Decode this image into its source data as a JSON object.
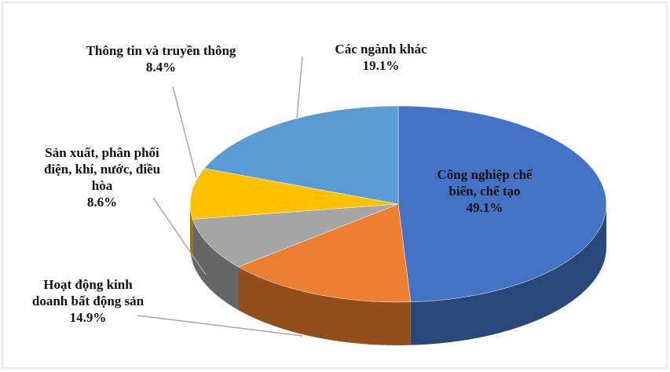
{
  "chart_data": {
    "type": "pie",
    "categories": [
      "Công nghiệp chế biến, chế tạo",
      "Hoạt động kinh doanh bất động sản",
      "Sản xuất, phân phối điện, khí, nước, điều hòa",
      "Thông tin và truyền thông",
      "Các ngành khác"
    ],
    "values": [
      49.1,
      14.9,
      8.6,
      8.4,
      19.1
    ],
    "value_labels": [
      "49.1%",
      "14.9%",
      "8.6%",
      "8.4%",
      "19.1%"
    ],
    "colors": [
      "#4472c4",
      "#ed7d31",
      "#a5a5a5",
      "#ffc000",
      "#5b9bd5"
    ]
  }
}
